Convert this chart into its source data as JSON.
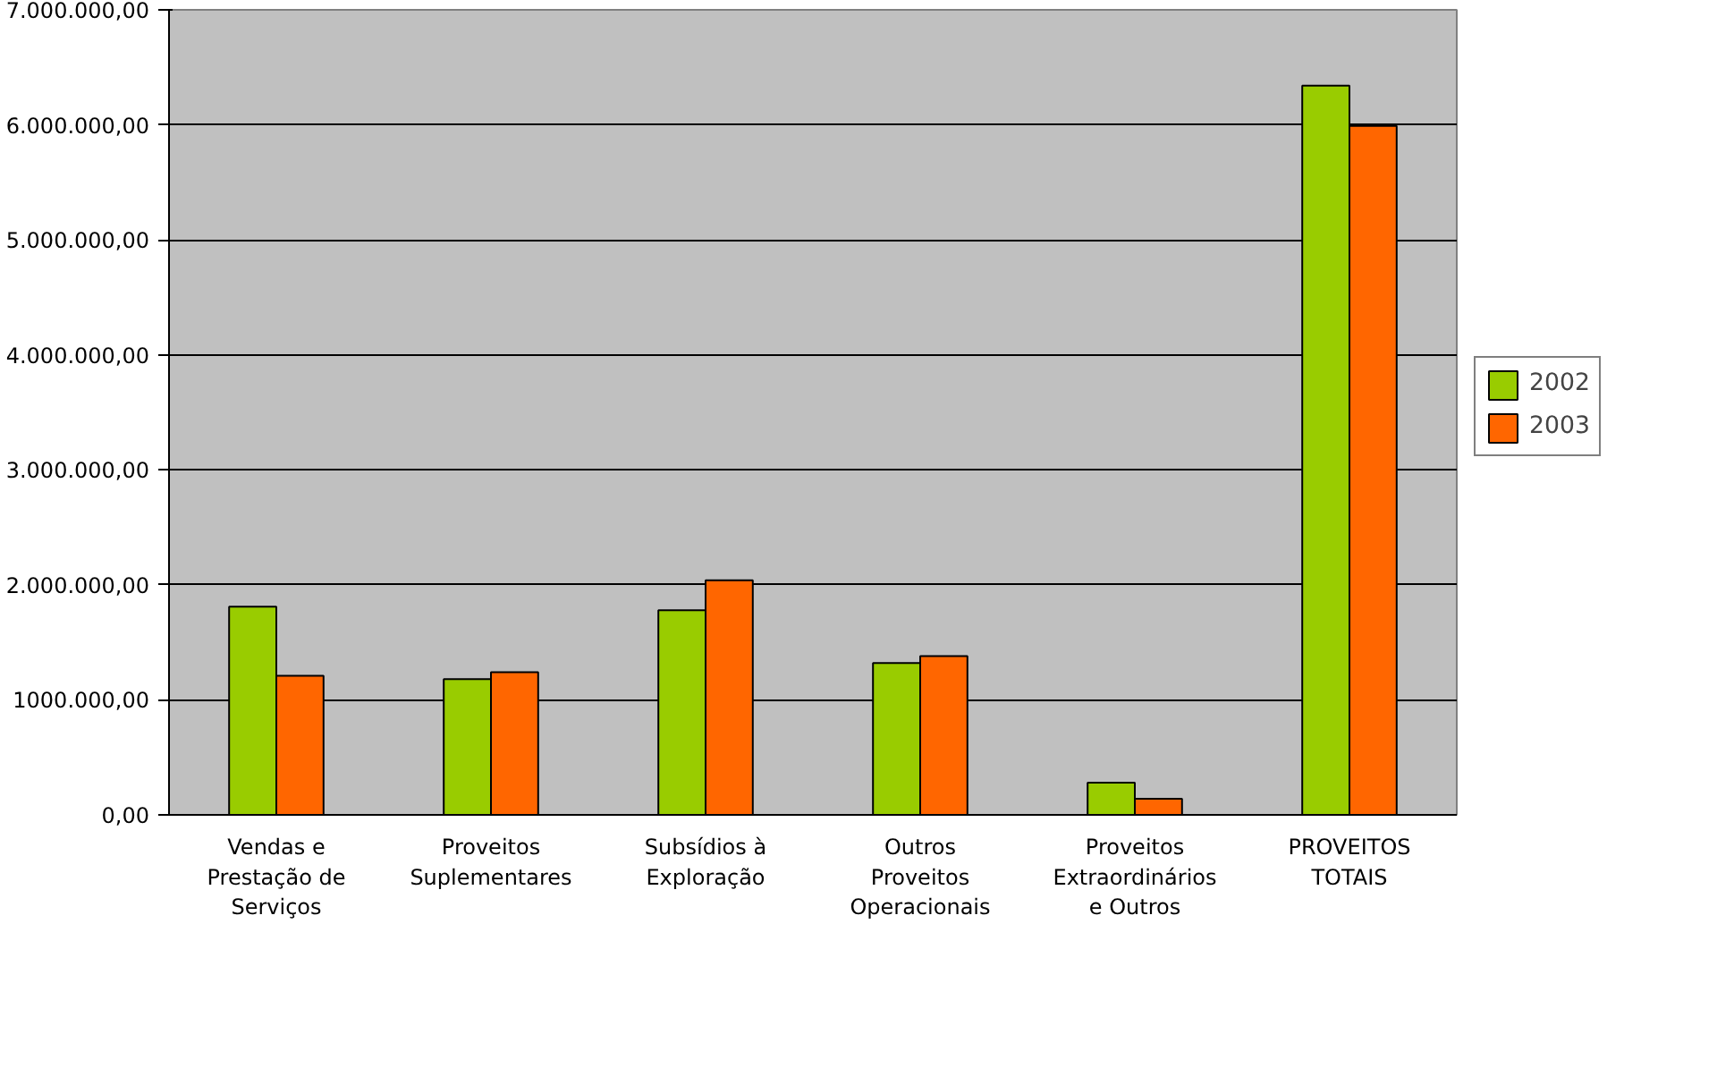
{
  "chart_data": {
    "type": "bar",
    "categories": [
      "Vendas e Prestação de Serviços",
      "Proveitos Suplementares",
      "Subsídios à Exploração",
      "Outros Proveitos Operacionais",
      "Proveitos Extraordinários e Outros",
      "PROVEITOS TOTAIS"
    ],
    "series": [
      {
        "name": "2002",
        "color": "#99cc00",
        "values": [
          1810000,
          1180000,
          1780000,
          1320000,
          280000,
          6340000
        ]
      },
      {
        "name": "2003",
        "color": "#ff6600",
        "values": [
          1210000,
          1240000,
          2040000,
          1380000,
          140000,
          5990000
        ]
      }
    ],
    "ylim": [
      0,
      7000000
    ],
    "yticks": [
      {
        "value": 0,
        "label": "0,00"
      },
      {
        "value": 1000000,
        "label": "1000.000,00"
      },
      {
        "value": 2000000,
        "label": "2.000.000,00"
      },
      {
        "value": 3000000,
        "label": "3.000.000,00"
      },
      {
        "value": 4000000,
        "label": "4.000.000,00"
      },
      {
        "value": 5000000,
        "label": "5.000.000,00"
      },
      {
        "value": 6000000,
        "label": "6.000.000,00"
      },
      {
        "value": 7000000,
        "label": "7.000.000,00"
      }
    ],
    "grid": "y",
    "legend": "right"
  }
}
